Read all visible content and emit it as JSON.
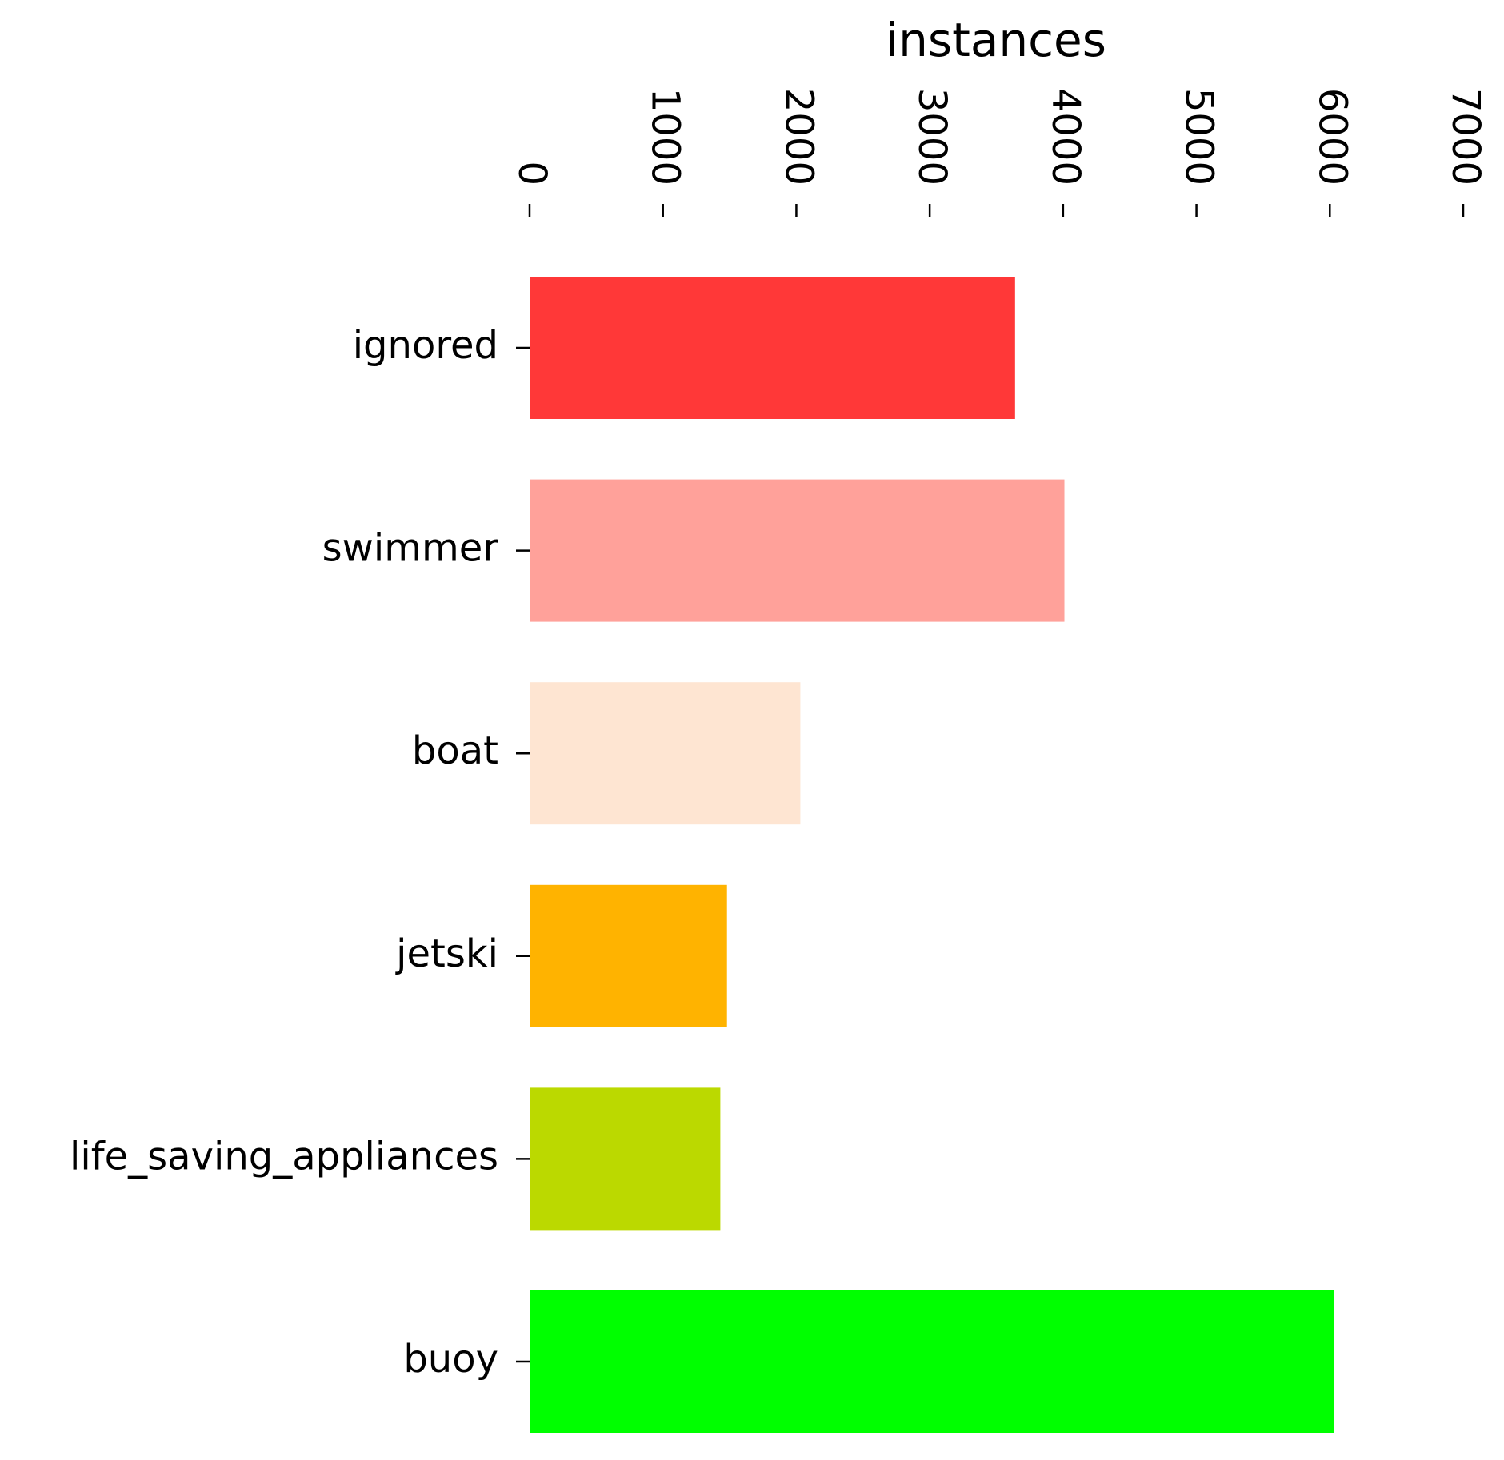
{
  "chart_data": {
    "type": "barh",
    "x_label": "instances",
    "categories": [
      "ignored",
      "swimmer",
      "boat",
      "jetski",
      "life_saving_appliances",
      "buoy"
    ],
    "values": [
      3640,
      4010,
      2030,
      1480,
      1430,
      6030
    ],
    "colors": [
      "#ff3838",
      "#ffa19a",
      "#fee5d2",
      "#ffb300",
      "#bbd900",
      "#00ff00"
    ],
    "xlim": [
      0,
      7000
    ],
    "xticks": [
      0,
      1000,
      2000,
      3000,
      4000,
      5000,
      6000,
      7000
    ],
    "grid": false
  }
}
